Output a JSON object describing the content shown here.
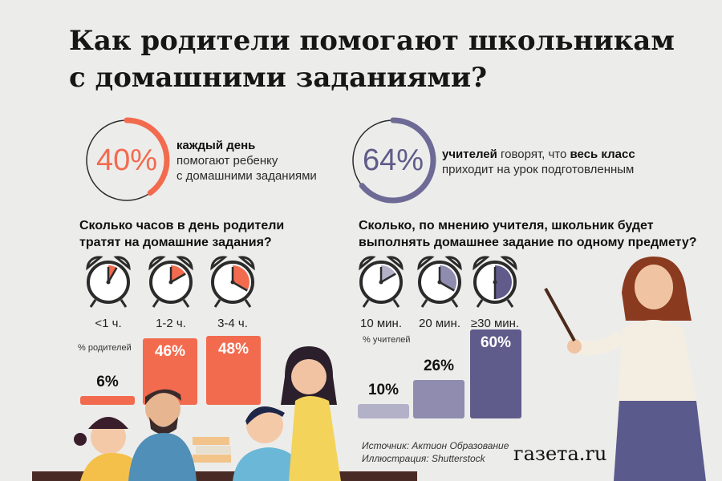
{
  "title_line1": "Как родители помогают школьникам",
  "title_line2": "с домашними заданиями?",
  "stat_left": {
    "value": 40,
    "pct_label": "40%",
    "bold": "каждый день",
    "rest_line1": " помогают ребенку",
    "rest_line2": "с домашними заданиями",
    "color": "#f26b4f"
  },
  "stat_right": {
    "value": 64,
    "pct_label": "64%",
    "bold1": "учителей",
    "mid": " говорят, что ",
    "bold2": "весь класс",
    "line2": "приходит на урок подготовленным",
    "color": "#6e6a96"
  },
  "left_question_line1": "Сколько часов в день родители",
  "left_question_line2": "тратят на домашние задания?",
  "right_question_line1": "Сколько, по мнению учителя, школьник будет",
  "right_question_line2": "выполнять домашнее задание по одному предмету?",
  "left_unit_note": "% родителей",
  "right_unit_note": "% учителей",
  "source_line1": "Источник: Актион Образование",
  "source_line2": "Иллюстрация: Shutterstock",
  "logo": "газета.ru",
  "chart_data": [
    {
      "type": "bar",
      "categories": [
        "<1 ч.",
        "1-2 ч.",
        "3-4 ч."
      ],
      "values": [
        6,
        46,
        48
      ],
      "value_labels": [
        "6%",
        "46%",
        "48%"
      ],
      "color": "#f26b4f",
      "ylabel": "% родителей"
    },
    {
      "type": "bar",
      "categories": [
        "10 мин.",
        "20 мин.",
        "≥30 мин."
      ],
      "values": [
        10,
        26,
        60
      ],
      "value_labels": [
        "10%",
        "26%",
        "60%"
      ],
      "colors": [
        "#b3b1c8",
        "#8f8cb0",
        "#5f5b8a"
      ],
      "ylabel": "% учителей"
    }
  ]
}
